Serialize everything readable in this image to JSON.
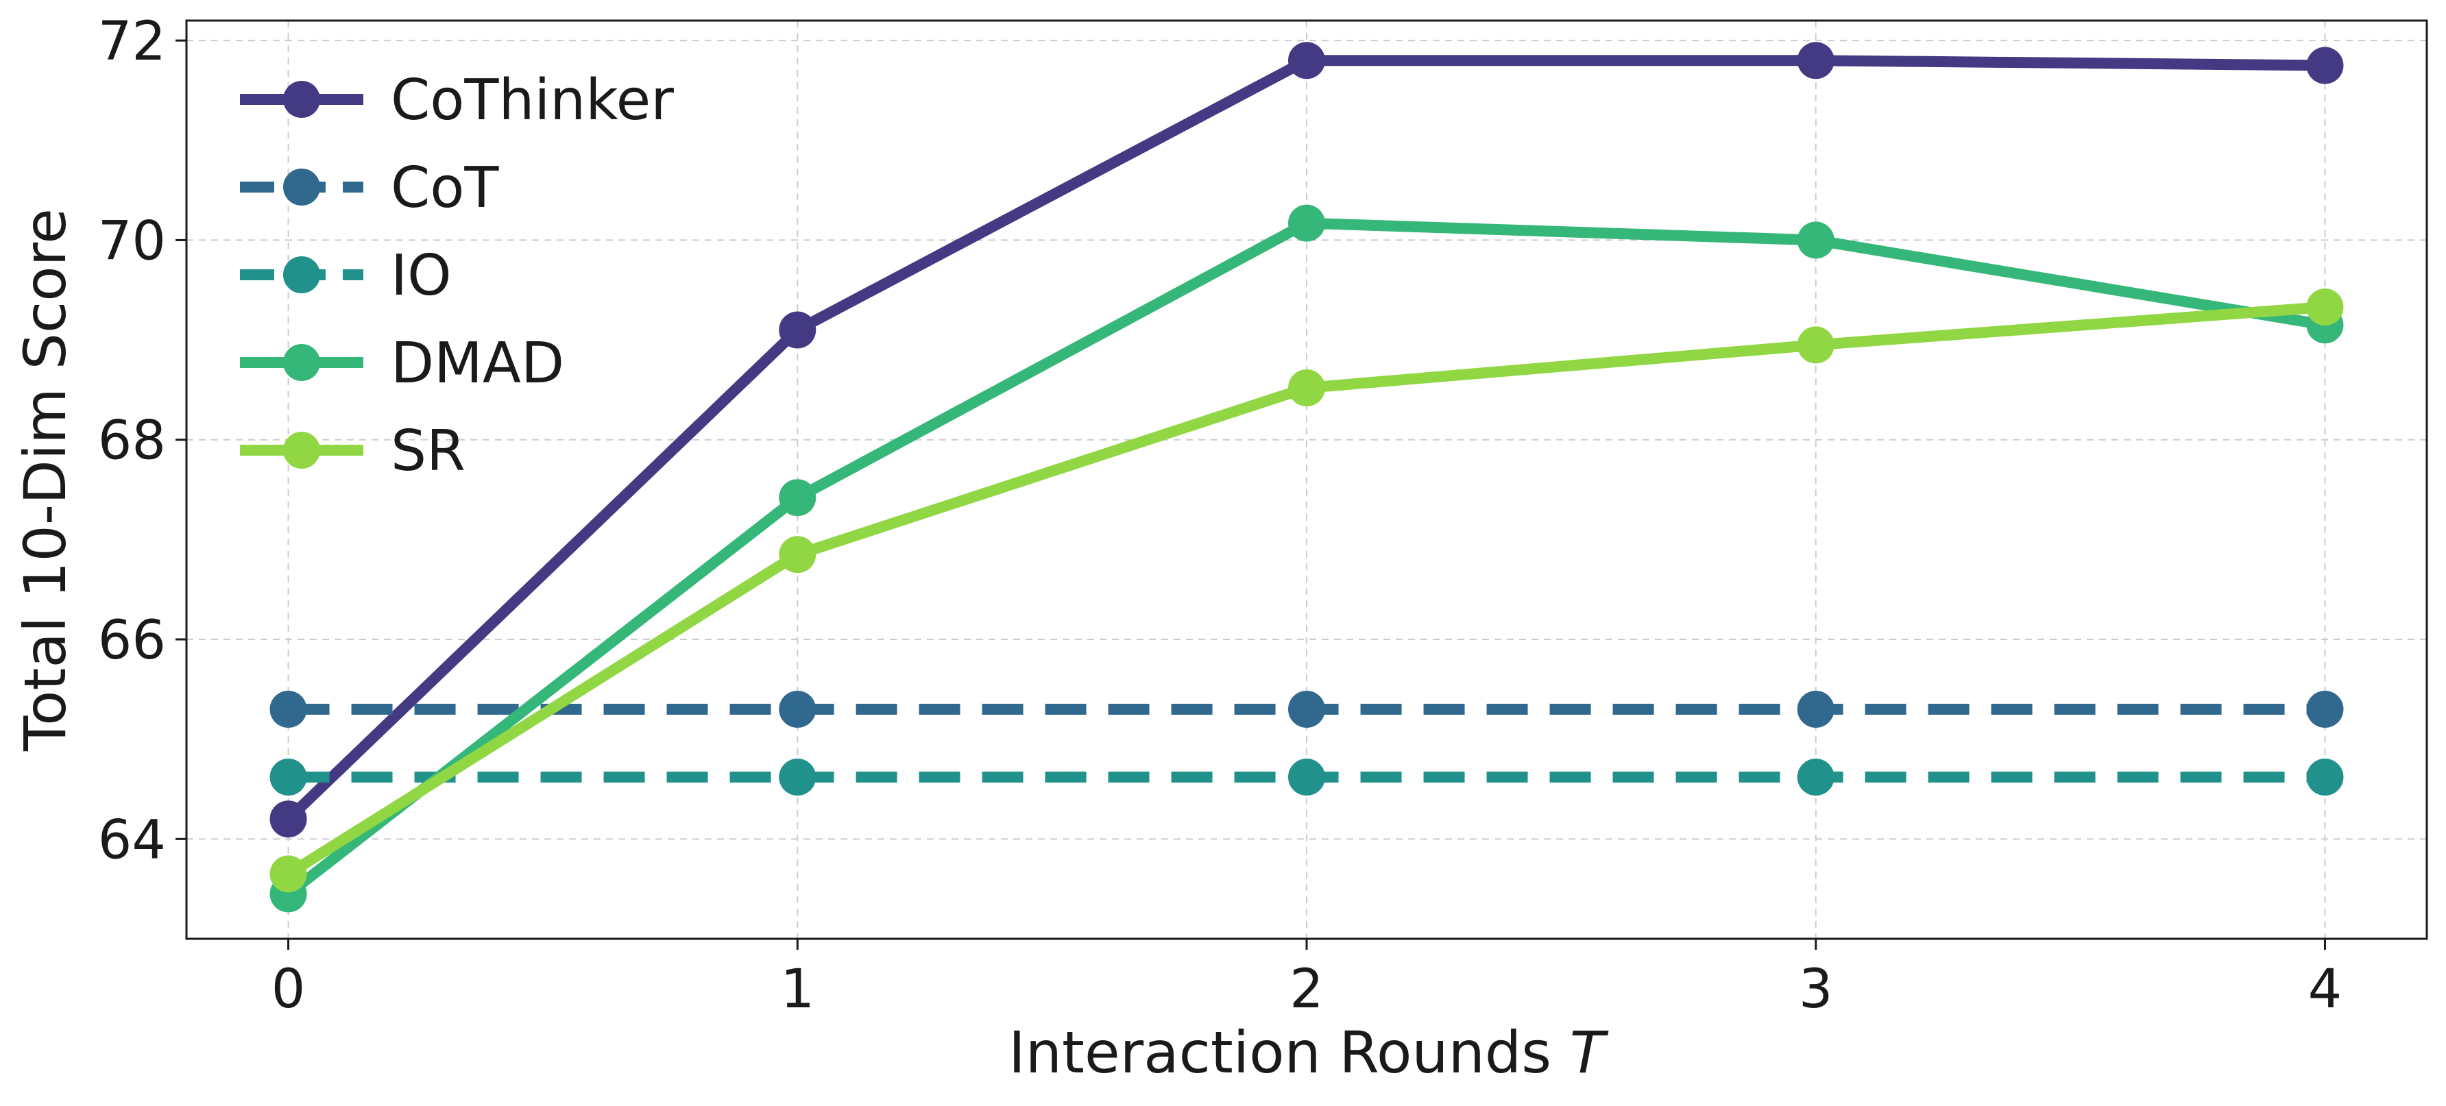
{
  "chart_data": {
    "type": "line",
    "xlabel": "Interaction Rounds",
    "xlabel_var": "T",
    "ylabel": "Total 10-Dim Score",
    "x": [
      0,
      1,
      2,
      3,
      4
    ],
    "x_ticks": [
      "0",
      "1",
      "2",
      "3",
      "4"
    ],
    "y_ticks": [
      "64",
      "66",
      "68",
      "70",
      "72"
    ],
    "xlim": [
      -0.2,
      4.2
    ],
    "ylim": [
      63.0,
      72.2
    ],
    "grid": true,
    "legend_position": "upper-left",
    "series": [
      {
        "name": "CoThinker",
        "values": [
          64.2,
          69.1,
          71.8,
          71.8,
          71.75
        ],
        "color": "#443a83",
        "style": "solid"
      },
      {
        "name": "CoT",
        "values": [
          65.3,
          65.3,
          65.3,
          65.3,
          65.3
        ],
        "color": "#31688e",
        "style": "dashed"
      },
      {
        "name": "IO",
        "values": [
          64.62,
          64.62,
          64.62,
          64.62,
          64.62
        ],
        "color": "#21918c",
        "style": "dashed"
      },
      {
        "name": "DMAD",
        "values": [
          63.45,
          67.42,
          70.17,
          70.0,
          69.15
        ],
        "color": "#35b779",
        "style": "solid"
      },
      {
        "name": "SR",
        "values": [
          63.65,
          66.85,
          68.52,
          68.95,
          69.33
        ],
        "color": "#90d743",
        "style": "solid"
      }
    ]
  }
}
